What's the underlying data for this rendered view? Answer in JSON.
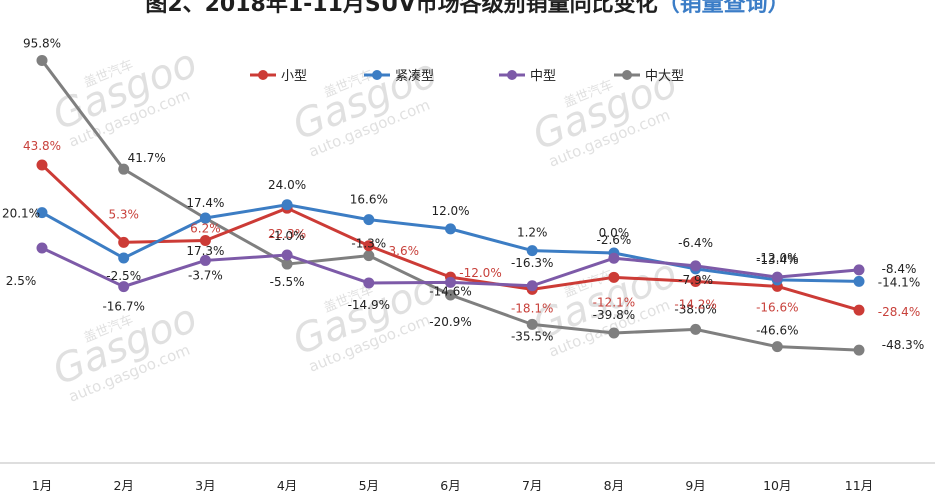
{
  "chart_data": {
    "type": "line",
    "title": "图2、2018年1-11月SUV市场各级别销量同比变化",
    "subtitle": "（销量查询）",
    "categories": [
      "1月",
      "2月",
      "3月",
      "4月",
      "5月",
      "6月",
      "7月",
      "8月",
      "9月",
      "10月",
      "11月"
    ],
    "series": [
      {
        "name": "小型",
        "color": "#cc3b36",
        "values": [
          43.8,
          5.3,
          6.2,
          22.3,
          3.6,
          -12.0,
          -18.1,
          -12.1,
          -14.2,
          -16.6,
          -28.4
        ],
        "labels": [
          "43.8%",
          "5.3%",
          "6.2%",
          "22.3%",
          "3.6%",
          "-12.0%",
          "-18.1%",
          "-12.1%",
          "-14.2%",
          "-16.6%",
          "-28.4%"
        ]
      },
      {
        "name": "紧凑型",
        "color": "#3c7dc4",
        "values": [
          20.1,
          -2.5,
          17.4,
          24.0,
          16.6,
          12.0,
          1.2,
          0.0,
          -7.9,
          -13.4,
          -14.1
        ],
        "labels": [
          "20.1%",
          "-2.5%",
          "17.4%",
          "24.0%",
          "16.6%",
          "12.0%",
          "1.2%",
          "0.0%",
          "-7.9%",
          "-13.4%",
          "-14.1%"
        ]
      },
      {
        "name": "中型",
        "color": "#7d5aa8",
        "values": [
          2.5,
          -16.7,
          -3.7,
          -1.0,
          -14.9,
          -14.6,
          -16.3,
          -2.6,
          -6.4,
          -12.0,
          -8.4
        ],
        "labels": [
          "2.5%",
          "-16.7%",
          "-3.7%",
          "-1.0%",
          "-14.9%",
          "-14.6%",
          "-16.3%",
          "-2.6%",
          "-6.4%",
          "-12.0%",
          "-8.4%"
        ]
      },
      {
        "name": "中大型",
        "color": "#7f7f7f",
        "values": [
          95.8,
          41.7,
          17.3,
          -5.5,
          -1.3,
          -20.9,
          -35.5,
          -39.8,
          -38.0,
          -46.6,
          -48.3
        ],
        "labels": [
          "95.8%",
          "41.7%",
          "17.3%",
          "-5.5%",
          "-1.3%",
          "-20.9%",
          "-35.5%",
          "-39.8%",
          "-38.0%",
          "-46.6%",
          "-48.3%"
        ]
      }
    ],
    "legend_position": "top",
    "grid": false,
    "xlabel": "",
    "ylabel": ""
  },
  "watermark": {
    "brand": "Gasgoo",
    "cn": "盖世汽车",
    "url": "auto.gasgoo.com"
  }
}
